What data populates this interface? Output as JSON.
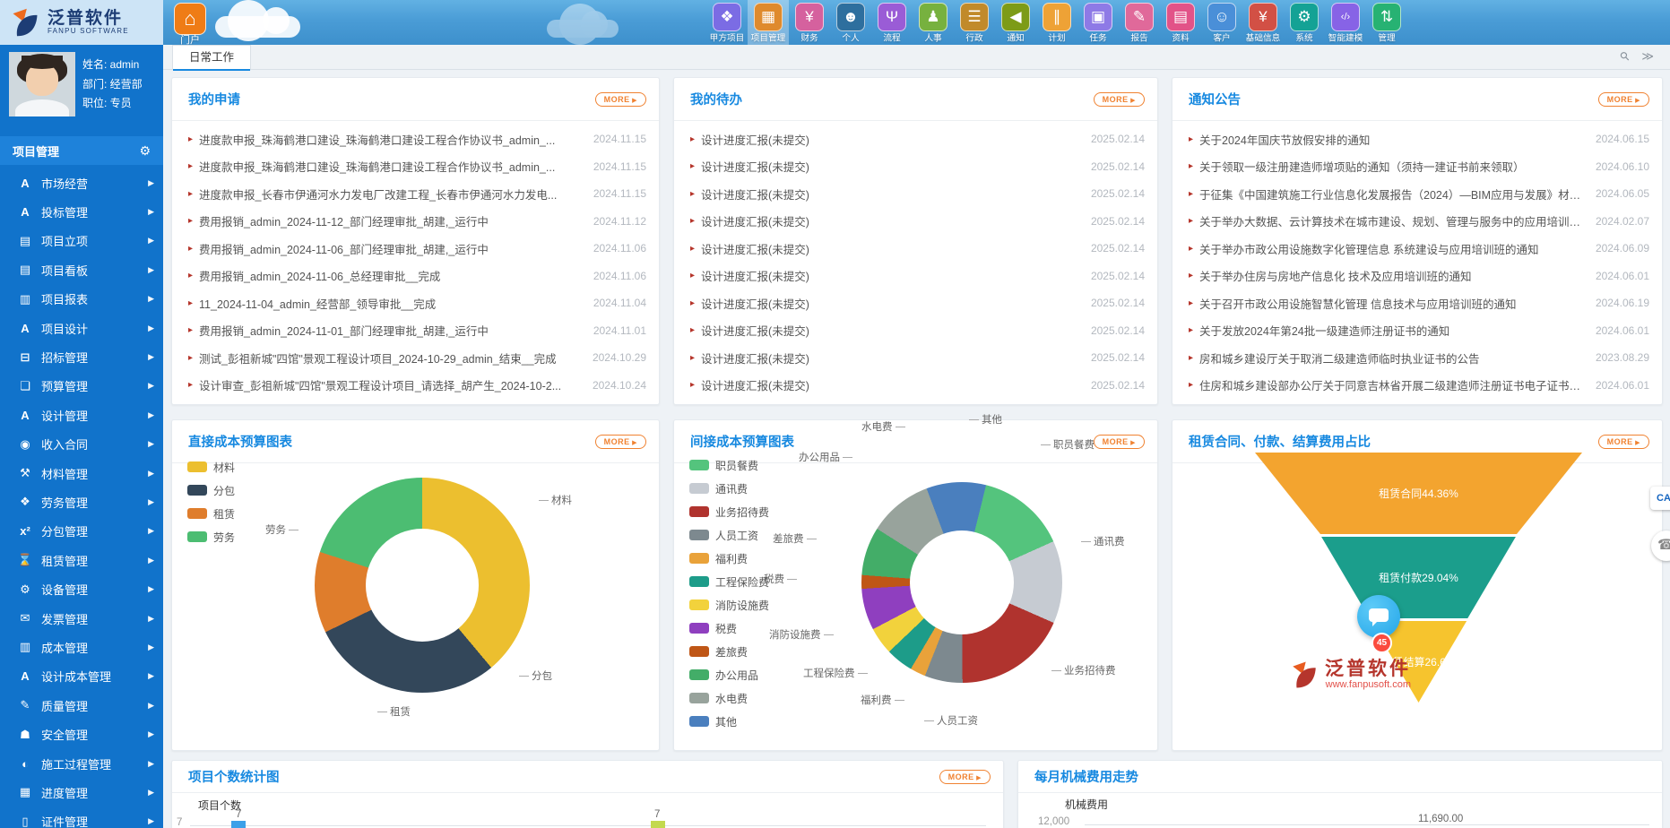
{
  "topbar": {
    "logo_title": "泛普软件",
    "logo_subtitle": "FANPU SOFTWARE",
    "portal": {
      "label": "门户",
      "icon": "home-icon",
      "color": "#ef7c16"
    },
    "modules": [
      {
        "label": "甲方项目",
        "icon": "grid-diamond-icon",
        "color": "#7b6ce4",
        "active": false
      },
      {
        "label": "项目管理",
        "icon": "grid-icon",
        "color": "#df8a2d",
        "active": true
      },
      {
        "label": "财务",
        "icon": "money-icon",
        "color": "#d5619e",
        "active": false
      },
      {
        "label": "个人",
        "icon": "user-icon",
        "color": "#2e6f9e",
        "active": false
      },
      {
        "label": "流程",
        "icon": "flow-icon",
        "color": "#9a5cd6",
        "active": false
      },
      {
        "label": "人事",
        "icon": "staff-icon",
        "color": "#77b13f",
        "active": false
      },
      {
        "label": "行政",
        "icon": "layers-icon",
        "color": "#c18a2a",
        "active": false
      },
      {
        "label": "通知",
        "icon": "speaker-icon",
        "color": "#7d9b17",
        "active": false
      },
      {
        "label": "计划",
        "icon": "sliders-icon",
        "color": "#eea236",
        "active": false
      },
      {
        "label": "任务",
        "icon": "clipboard-icon",
        "color": "#8e7ae6",
        "active": false
      },
      {
        "label": "报告",
        "icon": "report-icon",
        "color": "#e0699a",
        "active": false
      },
      {
        "label": "资料",
        "icon": "document-icon",
        "color": "#e25388",
        "active": false
      },
      {
        "label": "客户",
        "icon": "customers-icon",
        "color": "#4a8fd8",
        "active": false
      },
      {
        "label": "基础信息",
        "icon": "info-money-icon",
        "color": "#d25045",
        "active": false
      },
      {
        "label": "系统",
        "icon": "gear-icon",
        "color": "#14a295",
        "active": false
      },
      {
        "label": "智能建模",
        "icon": "code-icon",
        "color": "#8763e6",
        "active": false
      },
      {
        "label": "管理",
        "icon": "manage-list-icon",
        "color": "#27b273",
        "active": false
      }
    ]
  },
  "sidebar": {
    "user": {
      "name": "姓名: admin",
      "dept": "部门: 经营部",
      "role": "职位: 专员"
    },
    "section_title": "项目管理",
    "items": [
      {
        "label": "市场经营",
        "icon": "market-icon"
      },
      {
        "label": "投标管理",
        "icon": "bid-icon"
      },
      {
        "label": "项目立项",
        "icon": "initiation-icon"
      },
      {
        "label": "项目看板",
        "icon": "kanban-icon"
      },
      {
        "label": "项目报表",
        "icon": "report-chart-icon"
      },
      {
        "label": "项目设计",
        "icon": "design-icon"
      },
      {
        "label": "招标管理",
        "icon": "tender-icon"
      },
      {
        "label": "预算管理",
        "icon": "budget-folder-icon"
      },
      {
        "label": "设计管理",
        "icon": "design-manage-icon"
      },
      {
        "label": "收入合同",
        "icon": "income-contract-icon"
      },
      {
        "label": "材料管理",
        "icon": "material-cart-icon"
      },
      {
        "label": "劳务管理",
        "icon": "labor-icon"
      },
      {
        "label": "分包管理",
        "icon": "subcontract-icon"
      },
      {
        "label": "租赁管理",
        "icon": "lease-icon"
      },
      {
        "label": "设备管理",
        "icon": "equipment-icon"
      },
      {
        "label": "发票管理",
        "icon": "invoice-icon"
      },
      {
        "label": "成本管理",
        "icon": "cost-icon"
      },
      {
        "label": "设计成本管理",
        "icon": "design-cost-icon"
      },
      {
        "label": "质量管理",
        "icon": "quality-icon"
      },
      {
        "label": "安全管理",
        "icon": "safety-icon"
      },
      {
        "label": "施工过程管理",
        "icon": "construction-icon"
      },
      {
        "label": "进度管理",
        "icon": "progress-icon"
      },
      {
        "label": "证件管理",
        "icon": "certificate-icon"
      }
    ]
  },
  "tabs": {
    "active": "日常工作"
  },
  "panels": {
    "my_requests": {
      "title": "我的申请",
      "more": "MORE",
      "rows": [
        {
          "text": "进度款申报_珠海鹤港口建设_珠海鹤港口建设工程合作协议书_admin_...",
          "date": "2024.11.15"
        },
        {
          "text": "进度款申报_珠海鹤港口建设_珠海鹤港口建设工程合作协议书_admin_...",
          "date": "2024.11.15"
        },
        {
          "text": "进度款申报_长春市伊通河水力发电厂改建工程_长春市伊通河水力发电...",
          "date": "2024.11.15"
        },
        {
          "text": "费用报销_admin_2024-11-12_部门经理审批_胡建,_运行中",
          "date": "2024.11.12"
        },
        {
          "text": "费用报销_admin_2024-11-06_部门经理审批_胡建,_运行中",
          "date": "2024.11.06"
        },
        {
          "text": "费用报销_admin_2024-11-06_总经理审批__完成",
          "date": "2024.11.06"
        },
        {
          "text": "11_2024-11-04_admin_经营部_领导审批__完成",
          "date": "2024.11.04"
        },
        {
          "text": "费用报销_admin_2024-11-01_部门经理审批_胡建,_运行中",
          "date": "2024.11.01"
        },
        {
          "text": "测试_彭祖新城\"四馆\"景观工程设计项目_2024-10-29_admin_结束__完成",
          "date": "2024.10.29"
        },
        {
          "text": "设计审查_彭祖新城\"四馆\"景观工程设计项目_请选择_胡产生_2024-10-2...",
          "date": "2024.10.24"
        }
      ]
    },
    "my_todos": {
      "title": "我的待办",
      "more": "MORE",
      "rows": [
        {
          "text": "设计进度汇报(未提交)",
          "date": "2025.02.14"
        },
        {
          "text": "设计进度汇报(未提交)",
          "date": "2025.02.14"
        },
        {
          "text": "设计进度汇报(未提交)",
          "date": "2025.02.14"
        },
        {
          "text": "设计进度汇报(未提交)",
          "date": "2025.02.14"
        },
        {
          "text": "设计进度汇报(未提交)",
          "date": "2025.02.14"
        },
        {
          "text": "设计进度汇报(未提交)",
          "date": "2025.02.14"
        },
        {
          "text": "设计进度汇报(未提交)",
          "date": "2025.02.14"
        },
        {
          "text": "设计进度汇报(未提交)",
          "date": "2025.02.14"
        },
        {
          "text": "设计进度汇报(未提交)",
          "date": "2025.02.14"
        },
        {
          "text": "设计进度汇报(未提交)",
          "date": "2025.02.14"
        }
      ]
    },
    "notices": {
      "title": "通知公告",
      "more": "MORE",
      "rows": [
        {
          "text": "关于2024年国庆节放假安排的通知",
          "date": "2024.06.15"
        },
        {
          "text": "关于领取一级注册建造师增项贴的通知（须持一建证书前来领取）",
          "date": "2024.06.10"
        },
        {
          "text": "于征集《中国建筑施工行业信息化发展报告（2024）—BIM应用与发展》材料...",
          "date": "2024.06.05"
        },
        {
          "text": "关于举办大数据、云计算技术在城市建设、规划、管理与服务中的应用培训班...",
          "date": "2024.02.07"
        },
        {
          "text": "关于举办市政公用设施数字化管理信息 系统建设与应用培训班的通知",
          "date": "2024.06.09"
        },
        {
          "text": "关于举办住房与房地产信息化 技术及应用培训班的通知",
          "date": "2024.06.01"
        },
        {
          "text": "关于召开市政公用设施智慧化管理 信息技术与应用培训班的通知",
          "date": "2024.06.19"
        },
        {
          "text": "关于发放2024年第24批一级建造师注册证书的通知",
          "date": "2024.06.01"
        },
        {
          "text": "房和城乡建设厅关于取消二级建造师临时执业证书的公告",
          "date": "2023.08.29"
        },
        {
          "text": "住房和城乡建设部办公厅关于同意吉林省开展二级建造师注册证书电子证书试点...",
          "date": "2024.06.01"
        }
      ]
    },
    "direct_cost": {
      "title": "直接成本预算图表",
      "more": "MORE"
    },
    "indirect_cost": {
      "title": "间接成本预算图表",
      "more": "MORE"
    },
    "lease_ratio": {
      "title": "租赁合同、付款、结算费用占比",
      "more": "MORE"
    },
    "project_count": {
      "title": "项目个数统计图",
      "more": "MORE",
      "ylabel": "项目个数",
      "axis_max": "7",
      "bar_labels": [
        "7",
        "7"
      ]
    },
    "monthly_machine": {
      "title": "每月机械费用走势",
      "ylabel": "机械费用",
      "axis_max": "12,000",
      "point_label": "11,690.00"
    }
  },
  "chart_data": [
    {
      "type": "pie",
      "title": "直接成本预算图表",
      "legend_position": "top-left",
      "start_deg": 0,
      "slices": [
        {
          "label": "材料",
          "percent": 38.9,
          "color": "#ecbf2f"
        },
        {
          "label": "分包",
          "percent": 28.9,
          "color": "#33475a"
        },
        {
          "label": "租赁",
          "percent": 12.2,
          "color": "#df7d2c"
        },
        {
          "label": "劳务",
          "percent": 20.0,
          "color": "#4cbd72"
        }
      ],
      "note": "donut chart; percents estimated from arc angles"
    },
    {
      "type": "pie",
      "title": "间接成本预算图表",
      "legend_position": "left",
      "start_deg": 14,
      "slices": [
        {
          "label": "职员餐费",
          "percent": 14.4,
          "color": "#54c47d"
        },
        {
          "label": "通讯费",
          "percent": 13.3,
          "color": "#c6cbd2"
        },
        {
          "label": "业务招待费",
          "percent": 18.3,
          "color": "#b0332e"
        },
        {
          "label": "人员工资",
          "percent": 6.1,
          "color": "#7d898f"
        },
        {
          "label": "福利费",
          "percent": 2.5,
          "color": "#e9a23a"
        },
        {
          "label": "工程保险费",
          "percent": 4.4,
          "color": "#1d9c89"
        },
        {
          "label": "消防设施费",
          "percent": 4.4,
          "color": "#f2d23c"
        },
        {
          "label": "税费",
          "percent": 6.7,
          "color": "#8f3fbf"
        },
        {
          "label": "差旅费",
          "percent": 2.2,
          "color": "#bf5616"
        },
        {
          "label": "办公用品",
          "percent": 7.8,
          "color": "#43ad68"
        },
        {
          "label": "水电费",
          "percent": 10.3,
          "color": "#98a39c"
        },
        {
          "label": "其他",
          "percent": 9.4,
          "color": "#4a7fbe"
        }
      ],
      "note": "donut chart; percents estimated from arc angles"
    },
    {
      "type": "funnel",
      "title": "租赁合同、付款、结算费用占比",
      "stages": [
        {
          "label": "租赁合同",
          "value": 44.36,
          "color": "#f3a42f"
        },
        {
          "label": "租赁付款",
          "value": 29.04,
          "color": "#1b9e8c"
        },
        {
          "label": "租赁结算",
          "value": 26.6,
          "color": "#f6c42e"
        }
      ]
    },
    {
      "type": "bar",
      "title": "项目个数统计图",
      "ylabel": "项目个数",
      "values": [
        7,
        7
      ],
      "colors": [
        "#3ba0e9",
        "#c3d94e"
      ],
      "axis_max": 7,
      "note": "chart cut off at bottom of viewport; only bar tops and data labels visible"
    },
    {
      "type": "line",
      "title": "每月机械费用走势",
      "ylabel": "机械费用",
      "visible_point": 11690.0,
      "axis_label": "12,000",
      "note": "chart cut off at bottom of viewport"
    }
  ],
  "floaters": {
    "ca_label": "CA",
    "chat_badge": "45",
    "watermark_title": "泛普软件",
    "watermark_url": "www.fanpusoft.com"
  }
}
